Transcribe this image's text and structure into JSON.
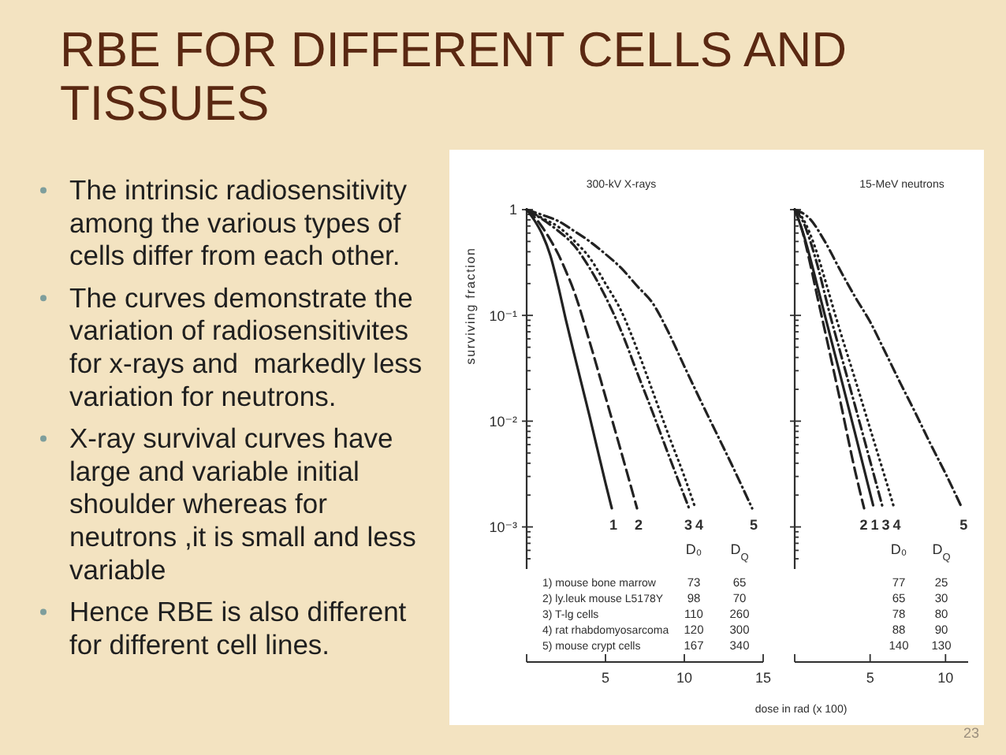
{
  "chart_data": [
    {
      "type": "other",
      "title": "RBE FOR DIFFERENT CELLS AND TISSUES",
      "annotations": [
        "The intrinsic radiosensitivity among the various types of cells differ from each other.",
        "The curves demonstrate the variation of radiosensitivites for x-rays and  markedly less variation for neutrons.",
        "X-ray survival curves have large and variable initial shoulder whereas for neutrons ,it is small and less variable",
        "Hence RBE is also different for different cell lines.",
        "23"
      ]
    },
    {
      "type": "line",
      "title": "300-kV X-rays",
      "xlabel": "dose in rad (x 100)",
      "ylabel": "surviving fraction",
      "log": true,
      "xlim": [
        0,
        15
      ],
      "xticks": [
        {
          "value": 0,
          "label": null
        },
        5,
        10,
        15
      ],
      "ylim": [
        0.0004,
        1
      ],
      "yticks": [
        {
          "value": 0.0005,
          "label": null
        },
        {
          "value": 0.0006,
          "label": null
        },
        {
          "value": 0.0007,
          "label": null
        },
        {
          "value": 0.0008,
          "label": null
        },
        {
          "value": 0.0009,
          "label": null
        },
        {
          "value": 0.001,
          "label": "10⁻³"
        },
        {
          "value": 0.002,
          "label": null
        },
        {
          "value": 0.003,
          "label": null
        },
        {
          "value": 0.004,
          "label": null
        },
        {
          "value": 0.005,
          "label": null
        },
        {
          "value": 0.006,
          "label": null
        },
        {
          "value": 0.007,
          "label": null
        },
        {
          "value": 0.008,
          "label": null
        },
        {
          "value": 0.009,
          "label": null
        },
        {
          "value": 0.01,
          "label": "10⁻²"
        },
        {
          "value": 0.02,
          "label": null
        },
        {
          "value": 0.03,
          "label": null
        },
        {
          "value": 0.04,
          "label": null
        },
        {
          "value": 0.05,
          "label": null
        },
        {
          "value": 0.06,
          "label": null
        },
        {
          "value": 0.07,
          "label": null
        },
        {
          "value": 0.08,
          "label": null
        },
        {
          "value": 0.09,
          "label": null
        },
        {
          "value": 0.1,
          "label": "10⁻¹"
        },
        {
          "value": 0.2,
          "label": null
        },
        {
          "value": 0.3,
          "label": null
        },
        {
          "value": 0.4,
          "label": null
        },
        {
          "value": 0.5,
          "label": null
        },
        {
          "value": 0.6,
          "label": null
        },
        {
          "value": 0.7,
          "label": null
        },
        {
          "value": 0.8,
          "label": null
        },
        {
          "value": 0.9,
          "label": null
        },
        1
      ],
      "series": [
        {
          "name": "1",
          "color": "#222222",
          "line_style": "solid",
          "x": [
            0,
            0.5,
            1,
            1.5,
            2,
            2.5,
            3,
            4,
            5,
            5.4
          ],
          "values": [
            1,
            0.79,
            0.58,
            0.37,
            0.19,
            0.089,
            0.044,
            0.011,
            0.0026,
            0.0015
          ]
        },
        {
          "name": "2",
          "color": "#222222",
          "line_style": "dashed",
          "x": [
            0,
            0.5,
            1,
            1.5,
            2,
            2.5,
            3,
            4,
            5,
            6,
            7
          ],
          "values": [
            1,
            0.85,
            0.68,
            0.52,
            0.38,
            0.26,
            0.17,
            0.056,
            0.017,
            0.0051,
            0.0015
          ]
        },
        {
          "name": "3",
          "color": "#222222",
          "line_style": "dashdot",
          "x": [
            0,
            1,
            2,
            3,
            4,
            5,
            6,
            7,
            8,
            9,
            10.3
          ],
          "values": [
            1,
            0.81,
            0.63,
            0.46,
            0.28,
            0.15,
            0.071,
            0.029,
            0.012,
            0.0048,
            0.0015
          ]
        },
        {
          "name": "4",
          "color": "#222222",
          "line_style": "dotted",
          "x": [
            0,
            1,
            2,
            3,
            4,
            5,
            6,
            7,
            8,
            9,
            10,
            10.7
          ],
          "values": [
            1,
            0.83,
            0.69,
            0.51,
            0.35,
            0.2,
            0.11,
            0.048,
            0.019,
            0.0074,
            0.003,
            0.0015
          ]
        },
        {
          "name": "5",
          "color": "#222222",
          "line_style": "dashdot",
          "x": [
            0,
            1,
            2,
            3,
            4,
            5,
            6,
            7,
            8,
            9,
            10,
            11,
            12,
            13,
            14.3
          ],
          "values": [
            1,
            0.89,
            0.78,
            0.63,
            0.5,
            0.38,
            0.28,
            0.19,
            0.13,
            0.069,
            0.033,
            0.016,
            0.0079,
            0.0039,
            0.0015
          ]
        }
      ],
      "annotations": [
        "D₀",
        "D$_{Q}$",
        "1) mouse bone marrow",
        "73",
        "65",
        "2) ly.leuk mouse L5178Y",
        "98",
        "70",
        "3) T-lg cells",
        "110",
        "260",
        "4) rat rhabdomyosarcoma",
        "120",
        "300",
        "5) mouse crypt cells",
        "167",
        "340"
      ]
    },
    {
      "type": "line",
      "title": "15-MeV neutrons",
      "log": true,
      "tick_labels": "x",
      "xlim": [
        0,
        11.5
      ],
      "xticks": [
        {
          "value": 0,
          "label": null
        },
        5,
        10
      ],
      "ylim": [
        0.0004,
        1
      ],
      "yticks": [
        {
          "value": 0.0005,
          "label": null
        },
        {
          "value": 0.0006,
          "label": null
        },
        {
          "value": 0.0007,
          "label": null
        },
        {
          "value": 0.0008,
          "label": null
        },
        {
          "value": 0.0009,
          "label": null
        },
        {
          "value": 0.001,
          "label": null
        },
        {
          "value": 0.002,
          "label": null
        },
        {
          "value": 0.003,
          "label": null
        },
        {
          "value": 0.004,
          "label": null
        },
        {
          "value": 0.005,
          "label": null
        },
        {
          "value": 0.006,
          "label": null
        },
        {
          "value": 0.007,
          "label": null
        },
        {
          "value": 0.008,
          "label": null
        },
        {
          "value": 0.009,
          "label": null
        },
        {
          "value": 0.01,
          "label": null
        },
        {
          "value": 0.02,
          "label": null
        },
        {
          "value": 0.03,
          "label": null
        },
        {
          "value": 0.04,
          "label": null
        },
        {
          "value": 0.05,
          "label": null
        },
        {
          "value": 0.06,
          "label": null
        },
        {
          "value": 0.07,
          "label": null
        },
        {
          "value": 0.08,
          "label": null
        },
        {
          "value": 0.09,
          "label": null
        },
        {
          "value": 0.1,
          "label": null
        },
        {
          "value": 0.2,
          "label": null
        },
        {
          "value": 0.3,
          "label": null
        },
        {
          "value": 0.4,
          "label": null
        },
        {
          "value": 0.5,
          "label": null
        },
        {
          "value": 0.6,
          "label": null
        },
        {
          "value": 0.7,
          "label": null
        },
        {
          "value": 0.8,
          "label": null
        },
        {
          "value": 0.9,
          "label": null
        },
        {
          "value": 1,
          "label": null
        }
      ],
      "series": [
        {
          "name": "1",
          "color": "#222222",
          "line_style": "solid",
          "x": [
            0,
            0.5,
            1,
            1.5,
            2,
            3,
            4,
            5.2
          ],
          "values": [
            1,
            0.64,
            0.36,
            0.19,
            0.1,
            0.028,
            0.0077,
            0.0016
          ]
        },
        {
          "name": "2",
          "color": "#222222",
          "line_style": "dashed",
          "x": [
            0,
            0.5,
            1,
            1.5,
            2,
            3,
            4,
            4.6
          ],
          "values": [
            1,
            0.63,
            0.32,
            0.15,
            0.072,
            0.016,
            0.0034,
            0.0015
          ]
        },
        {
          "name": "3",
          "color": "#222222",
          "line_style": "dashdot",
          "x": [
            0,
            0.5,
            1,
            1.5,
            2.35,
            3,
            4,
            5,
            5.85
          ],
          "values": [
            1,
            0.8,
            0.52,
            0.3,
            0.1,
            0.046,
            0.014,
            0.0042,
            0.0015
          ]
        },
        {
          "name": "4",
          "color": "#222222",
          "line_style": "dotted",
          "x": [
            0,
            0.5,
            1,
            1.5,
            2,
            2.7,
            3,
            4,
            5,
            6,
            6.6
          ],
          "values": [
            1,
            0.84,
            0.6,
            0.38,
            0.22,
            0.1,
            0.072,
            0.025,
            0.0085,
            0.0029,
            0.0015
          ]
        },
        {
          "name": "5",
          "color": "#222222",
          "line_style": "dashdot",
          "x": [
            0,
            1,
            2,
            3,
            4,
            5,
            6,
            7,
            8,
            9,
            10,
            11.1
          ],
          "values": [
            1,
            0.82,
            0.5,
            0.27,
            0.15,
            0.087,
            0.045,
            0.023,
            0.012,
            0.0061,
            0.0032,
            0.0015
          ]
        }
      ],
      "annotations": [
        "D₀",
        "D$_{Q}$",
        "77",
        "25",
        "65",
        "30",
        "78",
        "80",
        "88",
        "90",
        "140",
        "130"
      ]
    }
  ]
}
